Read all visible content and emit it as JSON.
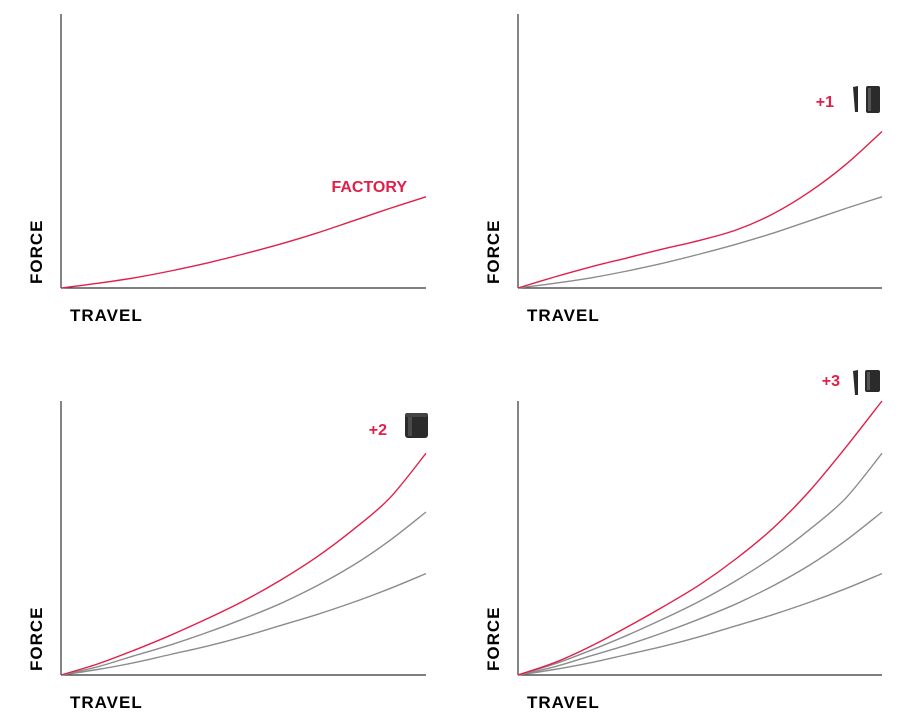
{
  "colors": {
    "accent": "#e0204a",
    "baseline": "#8c8c8c",
    "axis": "#333333",
    "spacer": "#2b2b2b"
  },
  "chart_data": [
    {
      "type": "line",
      "panel": "top-left",
      "xlabel": "TRAVEL",
      "ylabel": "FORCE",
      "annotation": "FACTORY",
      "spacer_icon": null,
      "series": [
        {
          "highlight": true,
          "values": [
            [
              0,
              0
            ],
            [
              0.1,
              0.017
            ],
            [
              0.2,
              0.037
            ],
            [
              0.3,
              0.062
            ],
            [
              0.4,
              0.091
            ],
            [
              0.5,
              0.124
            ],
            [
              0.6,
              0.16
            ],
            [
              0.7,
              0.2
            ],
            [
              0.8,
              0.245
            ],
            [
              0.9,
              0.29
            ],
            [
              1,
              0.333
            ]
          ]
        }
      ]
    },
    {
      "type": "line",
      "panel": "top-right",
      "xlabel": "TRAVEL",
      "ylabel": "FORCE",
      "annotation": "+1",
      "spacer_icon": "thin-spacer-icon",
      "series": [
        {
          "highlight": false,
          "values": [
            [
              0,
              0
            ],
            [
              0.1,
              0.017
            ],
            [
              0.2,
              0.037
            ],
            [
              0.3,
              0.062
            ],
            [
              0.4,
              0.091
            ],
            [
              0.5,
              0.124
            ],
            [
              0.6,
              0.16
            ],
            [
              0.7,
              0.2
            ],
            [
              0.8,
              0.245
            ],
            [
              0.9,
              0.29
            ],
            [
              1,
              0.333
            ]
          ]
        },
        {
          "highlight": true,
          "values": [
            [
              0,
              0
            ],
            [
              0.1,
              0.04
            ],
            [
              0.2,
              0.077
            ],
            [
              0.3,
              0.11
            ],
            [
              0.4,
              0.143
            ],
            [
              0.5,
              0.174
            ],
            [
              0.6,
              0.212
            ],
            [
              0.7,
              0.27
            ],
            [
              0.8,
              0.35
            ],
            [
              0.9,
              0.45
            ],
            [
              1,
              0.571
            ]
          ]
        }
      ]
    },
    {
      "type": "line",
      "panel": "bottom-left",
      "xlabel": "TRAVEL",
      "ylabel": "FORCE",
      "annotation": "+2",
      "spacer_icon": "thick-spacer-icon",
      "series": [
        {
          "highlight": false,
          "values": [
            [
              0,
              0
            ],
            [
              0.1,
              0.02
            ],
            [
              0.2,
              0.045
            ],
            [
              0.3,
              0.075
            ],
            [
              0.4,
              0.105
            ],
            [
              0.5,
              0.14
            ],
            [
              0.6,
              0.18
            ],
            [
              0.7,
              0.22
            ],
            [
              0.8,
              0.265
            ],
            [
              0.9,
              0.315
            ],
            [
              1,
              0.37
            ]
          ]
        },
        {
          "highlight": false,
          "values": [
            [
              0,
              0
            ],
            [
              0.1,
              0.03
            ],
            [
              0.2,
              0.07
            ],
            [
              0.3,
              0.11
            ],
            [
              0.4,
              0.155
            ],
            [
              0.5,
              0.205
            ],
            [
              0.6,
              0.26
            ],
            [
              0.7,
              0.325
            ],
            [
              0.8,
              0.4
            ],
            [
              0.9,
              0.49
            ],
            [
              1,
              0.595
            ]
          ]
        },
        {
          "highlight": true,
          "values": [
            [
              0,
              0
            ],
            [
              0.1,
              0.04
            ],
            [
              0.2,
              0.09
            ],
            [
              0.3,
              0.145
            ],
            [
              0.4,
              0.205
            ],
            [
              0.5,
              0.27
            ],
            [
              0.6,
              0.345
            ],
            [
              0.7,
              0.43
            ],
            [
              0.8,
              0.53
            ],
            [
              0.9,
              0.645
            ],
            [
              1,
              0.809
            ]
          ]
        }
      ]
    },
    {
      "type": "line",
      "panel": "bottom-right",
      "xlabel": "TRAVEL",
      "ylabel": "FORCE",
      "annotation": "+3",
      "spacer_icon": "thick-spacer-pair-icon",
      "series": [
        {
          "highlight": false,
          "values": [
            [
              0,
              0
            ],
            [
              0.1,
              0.02
            ],
            [
              0.2,
              0.045
            ],
            [
              0.3,
              0.075
            ],
            [
              0.4,
              0.105
            ],
            [
              0.5,
              0.14
            ],
            [
              0.6,
              0.18
            ],
            [
              0.7,
              0.22
            ],
            [
              0.8,
              0.265
            ],
            [
              0.9,
              0.315
            ],
            [
              1,
              0.37
            ]
          ]
        },
        {
          "highlight": false,
          "values": [
            [
              0,
              0
            ],
            [
              0.1,
              0.03
            ],
            [
              0.2,
              0.07
            ],
            [
              0.3,
              0.11
            ],
            [
              0.4,
              0.155
            ],
            [
              0.5,
              0.205
            ],
            [
              0.6,
              0.26
            ],
            [
              0.7,
              0.325
            ],
            [
              0.8,
              0.4
            ],
            [
              0.9,
              0.49
            ],
            [
              1,
              0.595
            ]
          ]
        },
        {
          "highlight": false,
          "values": [
            [
              0,
              0
            ],
            [
              0.1,
              0.04
            ],
            [
              0.2,
              0.09
            ],
            [
              0.3,
              0.145
            ],
            [
              0.4,
              0.205
            ],
            [
              0.5,
              0.27
            ],
            [
              0.6,
              0.345
            ],
            [
              0.7,
              0.43
            ],
            [
              0.8,
              0.53
            ],
            [
              0.9,
              0.645
            ],
            [
              1,
              0.809
            ]
          ]
        },
        {
          "highlight": true,
          "values": [
            [
              0,
              0
            ],
            [
              0.1,
              0.045
            ],
            [
              0.2,
              0.105
            ],
            [
              0.3,
              0.175
            ],
            [
              0.4,
              0.25
            ],
            [
              0.5,
              0.33
            ],
            [
              0.6,
              0.425
            ],
            [
              0.7,
              0.535
            ],
            [
              0.8,
              0.67
            ],
            [
              0.9,
              0.83
            ],
            [
              1,
              1.0
            ]
          ]
        }
      ]
    }
  ]
}
